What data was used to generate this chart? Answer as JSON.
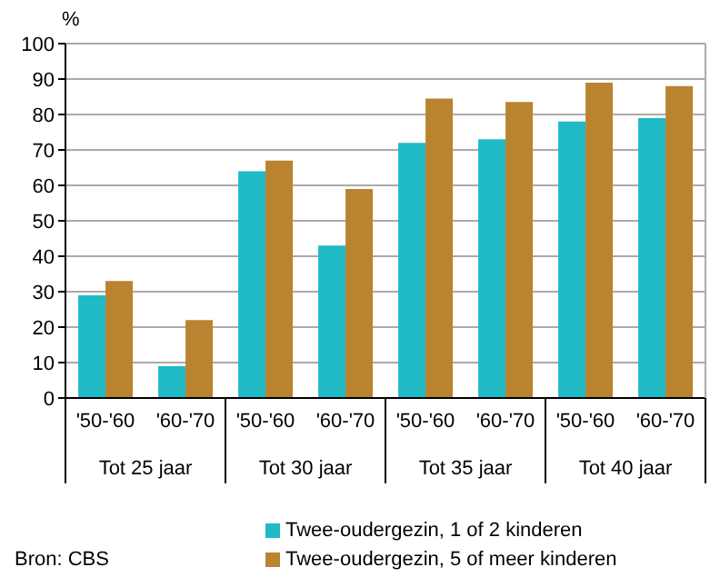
{
  "chart_data": {
    "type": "bar",
    "ylabel": "%",
    "categories": [
      "'50-'60",
      "'60-'70",
      "'50-'60",
      "'60-'70",
      "'50-'60",
      "'60-'70",
      "'50-'60",
      "'60-'70"
    ],
    "series": [
      {
        "name": "Twee-oudergezin, 1 of 2 kinderen",
        "color": "#1fbac6",
        "values": [
          29,
          9,
          64,
          43,
          72,
          73,
          78,
          79
        ]
      },
      {
        "name": "Twee-oudergezin, 5 of meer kinderen",
        "color": "#b98330",
        "values": [
          33,
          22,
          67,
          59,
          84.5,
          83.5,
          89,
          88
        ]
      }
    ],
    "ylim": [
      0,
      100
    ],
    "yticks": [
      0,
      10,
      20,
      30,
      40,
      50,
      60,
      70,
      80,
      90,
      100
    ],
    "grid": "y",
    "legend": "bottom",
    "annotations": [
      "Tot 25 jaar",
      "Tot 30 jaar",
      "Tot 35 jaar",
      "Tot 40 jaar",
      "Bron: CBS"
    ]
  }
}
